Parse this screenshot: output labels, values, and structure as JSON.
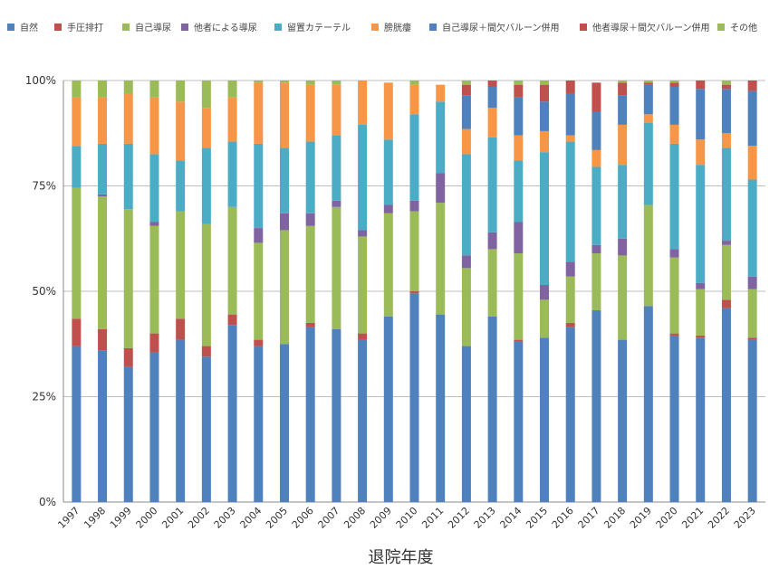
{
  "chart_data": {
    "type": "bar",
    "stacked": true,
    "percent": true,
    "xlabel": "退院年度",
    "ylabel": "",
    "ylim": [
      0,
      100
    ],
    "yticks": [
      "0%",
      "25%",
      "50%",
      "75%",
      "100%"
    ],
    "grid": true,
    "legend_position": "top",
    "categories": [
      "1997",
      "1998",
      "1999",
      "2000",
      "2001",
      "2002",
      "2003",
      "2004",
      "2005",
      "2006",
      "2007",
      "2008",
      "2009",
      "2010",
      "2011",
      "2012",
      "2013",
      "2014",
      "2015",
      "2016",
      "2017",
      "2018",
      "2019",
      "2020",
      "2021",
      "2022",
      "2023"
    ],
    "series": [
      {
        "name": "自然",
        "color": "#4F81BD",
        "values": [
          37,
          36,
          32,
          35.5,
          38.5,
          34.5,
          42,
          37,
          37.5,
          41.5,
          41,
          38.5,
          44,
          49.5,
          44.5,
          37,
          44,
          38,
          39,
          41.5,
          45.5,
          38.5,
          46.5,
          39.5,
          39,
          46,
          38.5
        ]
      },
      {
        "name": "手圧排打",
        "color": "#C0504D",
        "values": [
          6.5,
          5,
          4.5,
          4.5,
          5,
          2.5,
          2.5,
          1.5,
          0,
          1,
          0,
          1.5,
          0,
          0.5,
          0,
          0,
          0,
          0.5,
          0,
          1,
          0,
          0,
          0,
          0.5,
          0.5,
          2,
          0.5
        ]
      },
      {
        "name": "自己導尿",
        "color": "#9BBB59",
        "values": [
          31,
          31.5,
          33,
          25.5,
          25.5,
          29,
          25.5,
          23,
          27,
          23,
          29,
          23,
          24.5,
          19,
          26.5,
          18.5,
          16,
          20.5,
          9,
          11,
          13.5,
          20,
          24,
          18,
          11,
          13,
          11.5
        ]
      },
      {
        "name": "他者による導尿",
        "color": "#8064A2",
        "values": [
          0,
          0.5,
          0,
          1,
          0,
          0,
          0,
          3.5,
          4,
          3,
          1.5,
          1.5,
          2,
          2.5,
          7,
          3,
          4,
          7.5,
          3.5,
          3.5,
          2,
          4,
          0,
          2,
          1.5,
          1,
          3
        ]
      },
      {
        "name": "留置カテーテル",
        "color": "#4BACC6",
        "values": [
          10,
          12,
          15.5,
          16,
          12,
          18,
          15.5,
          20,
          15.5,
          17,
          15.5,
          25,
          15.5,
          20.5,
          17,
          24,
          22.5,
          14.5,
          31.5,
          28.5,
          18.5,
          17.5,
          19.5,
          25,
          28,
          22,
          23
        ]
      },
      {
        "name": "膀胱瘻",
        "color": "#F79646",
        "values": [
          11.5,
          11,
          12,
          13.5,
          14,
          9.5,
          10.5,
          14.5,
          15.5,
          13.5,
          12,
          10.5,
          13.5,
          7,
          4,
          6,
          7,
          6,
          5,
          1.5,
          4,
          9.5,
          2,
          4.5,
          6,
          3.5,
          8
        ]
      },
      {
        "name": "自己導尿＋間欠バルーン併用",
        "color": "#4F81BD",
        "values": [
          0,
          0,
          0,
          0,
          0,
          0,
          0,
          0,
          0,
          0,
          0,
          0,
          0,
          0,
          0,
          8,
          5,
          9,
          7,
          10,
          9,
          7,
          7,
          9,
          12,
          10.5,
          13
        ]
      },
      {
        "name": "他者導尿＋間欠バルーン併用",
        "color": "#C0504D",
        "values": [
          0,
          0,
          0,
          0,
          0,
          0,
          0,
          0,
          0,
          0,
          0,
          0,
          0,
          0,
          0,
          2.5,
          1.5,
          3,
          4,
          3,
          7,
          3,
          0.5,
          1,
          2,
          1,
          2.5
        ]
      },
      {
        "name": "その他",
        "color": "#9BBB59",
        "values": [
          4,
          4,
          3,
          4,
          5,
          6.5,
          4,
          0.5,
          0.5,
          1,
          1,
          0,
          0,
          1,
          0,
          1,
          0,
          1,
          1,
          0,
          0,
          0.5,
          0.5,
          0.5,
          0,
          1,
          0
        ]
      }
    ]
  }
}
